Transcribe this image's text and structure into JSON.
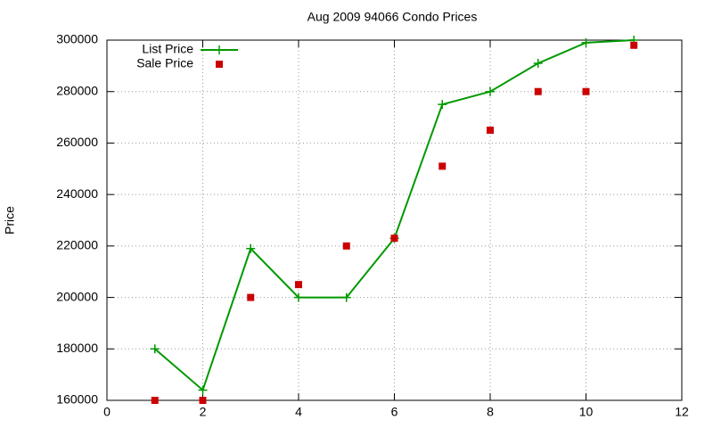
{
  "chart_data": {
    "type": "line",
    "title": "Aug 2009 94066 Condo Prices",
    "y_label": "Price",
    "x": [
      1,
      2,
      3,
      4,
      5,
      6,
      7,
      8,
      9,
      10,
      11
    ],
    "series": [
      {
        "name": "List Price",
        "color": "#009900",
        "style": "linespoints",
        "marker": "plus",
        "values": [
          180000,
          164000,
          219000,
          200000,
          200000,
          223000,
          275000,
          280000,
          291000,
          299000,
          300000
        ]
      },
      {
        "name": "Sale Price",
        "color": "#cc0000",
        "style": "points",
        "marker": "square",
        "values": [
          160000,
          160000,
          200000,
          205000,
          220000,
          223000,
          251000,
          265000,
          280000,
          280000,
          298000
        ]
      }
    ],
    "xlim": [
      0,
      12
    ],
    "xticks": [
      0,
      2,
      4,
      6,
      8,
      10,
      12
    ],
    "ylim": [
      160000,
      300000
    ],
    "yticks": [
      160000,
      180000,
      200000,
      220000,
      240000,
      260000,
      280000,
      300000
    ],
    "grid": true,
    "legend": "upper left"
  }
}
